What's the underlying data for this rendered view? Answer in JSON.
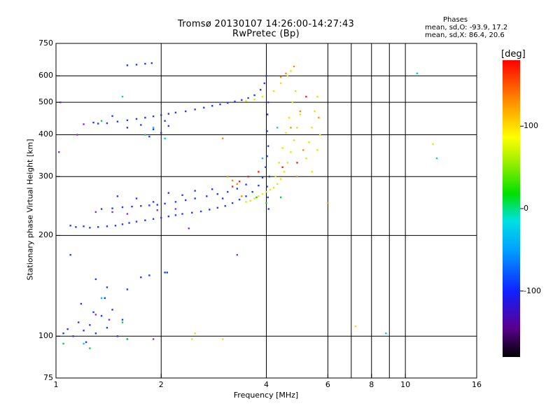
{
  "chart_data": {
    "type": "scatter",
    "title": "Tromsø 20130107 14:26:00-14:27:43",
    "subtitle": "RwPretec (Bp)",
    "stats": {
      "title": "Phases",
      "o_line": "mean, sd,O: -93.9, 17.2",
      "x_line": "mean, sd,X:  86.4, 20.6"
    },
    "xlabel": "Frequency [MHz]",
    "ylabel": "Stationary phase Virtual Height [km]",
    "x_scale": "log",
    "y_scale": "log",
    "xlim": [
      1,
      16
    ],
    "ylim": [
      75,
      750
    ],
    "x_ticks": [
      1,
      2,
      4,
      6,
      8,
      10,
      16
    ],
    "x_tick_labels": [
      "1",
      "2",
      "4",
      "6",
      "8",
      "10",
      "16"
    ],
    "x_grid": [
      2,
      4,
      6,
      8,
      10
    ],
    "x_minor": [
      7,
      9
    ],
    "y_ticks": [
      75,
      100,
      200,
      300,
      400,
      500,
      600,
      750
    ],
    "y_tick_labels": [
      "75",
      "100",
      "200",
      "300",
      "400",
      "500",
      "600",
      "750"
    ],
    "y_grid": [
      100,
      200,
      300,
      400,
      500,
      600
    ],
    "grid": true,
    "colorbar": {
      "label": "[deg]",
      "range": [
        -180,
        180
      ],
      "ticks": [
        100,
        0,
        -100
      ],
      "tick_labels": [
        "100",
        "0",
        "-100"
      ],
      "colormap": "rainbow"
    },
    "series": [
      {
        "color": "#1a3cff",
        "phase": -95,
        "points": [
          [
            1.1,
            214
          ],
          [
            1.14,
            212
          ],
          [
            1.2,
            213
          ],
          [
            1.25,
            211
          ],
          [
            1.32,
            212
          ],
          [
            1.4,
            213
          ],
          [
            1.48,
            214
          ],
          [
            1.55,
            216
          ],
          [
            1.62,
            218
          ],
          [
            1.7,
            220
          ],
          [
            1.8,
            222
          ],
          [
            1.9,
            224
          ],
          [
            2.0,
            226
          ],
          [
            2.1,
            228
          ],
          [
            2.2,
            230
          ],
          [
            2.3,
            232
          ],
          [
            2.45,
            234
          ],
          [
            2.6,
            236
          ],
          [
            2.75,
            239
          ],
          [
            2.9,
            242
          ],
          [
            3.05,
            245
          ],
          [
            3.2,
            250
          ],
          [
            3.35,
            256
          ],
          [
            3.5,
            262
          ],
          [
            3.65,
            270
          ],
          [
            3.8,
            282
          ],
          [
            3.9,
            298
          ],
          [
            3.98,
            320
          ],
          [
            4.02,
            345
          ],
          [
            4.05,
            370
          ],
          [
            1.35,
            240
          ],
          [
            1.45,
            241
          ],
          [
            1.55,
            243
          ],
          [
            1.65,
            244
          ],
          [
            1.75,
            245
          ],
          [
            1.85,
            246
          ],
          [
            1.95,
            247
          ],
          [
            2.05,
            249
          ],
          [
            2.2,
            252
          ],
          [
            2.35,
            255
          ],
          [
            2.5,
            258
          ],
          [
            2.7,
            262
          ],
          [
            2.9,
            266
          ],
          [
            3.1,
            270
          ],
          [
            3.3,
            276
          ],
          [
            3.5,
            284
          ],
          [
            1.5,
            262
          ],
          [
            1.7,
            258
          ],
          [
            1.9,
            252
          ],
          [
            2.1,
            268
          ],
          [
            2.3,
            264
          ],
          [
            2.5,
            272
          ],
          [
            2.8,
            275
          ],
          [
            3.0,
            258
          ],
          [
            1.28,
            435
          ],
          [
            1.32,
            432
          ],
          [
            1.4,
            433
          ],
          [
            1.5,
            438
          ],
          [
            1.6,
            442
          ],
          [
            1.7,
            446
          ],
          [
            1.8,
            450
          ],
          [
            1.9,
            454
          ],
          [
            2.0,
            458
          ],
          [
            2.1,
            462
          ],
          [
            2.2,
            466
          ],
          [
            2.35,
            470
          ],
          [
            2.5,
            476
          ],
          [
            2.65,
            482
          ],
          [
            2.8,
            488
          ],
          [
            2.95,
            493
          ],
          [
            3.1,
            498
          ],
          [
            3.25,
            503
          ],
          [
            3.4,
            508
          ],
          [
            3.55,
            515
          ],
          [
            3.7,
            525
          ],
          [
            3.85,
            545
          ],
          [
            3.95,
            570
          ],
          [
            4.0,
            600
          ],
          [
            1.6,
            420
          ],
          [
            1.75,
            428
          ],
          [
            1.9,
            415
          ],
          [
            2.0,
            405
          ],
          [
            2.1,
            425
          ],
          [
            1.85,
            395
          ],
          [
            2.05,
            440
          ],
          [
            1.45,
            455
          ],
          [
            1.6,
            645
          ],
          [
            1.7,
            648
          ],
          [
            1.8,
            652
          ],
          [
            1.88,
            655
          ],
          [
            1.05,
            102
          ],
          [
            1.08,
            105
          ],
          [
            1.12,
            100
          ],
          [
            1.16,
            110
          ],
          [
            1.2,
            104
          ],
          [
            1.25,
            108
          ],
          [
            1.3,
            102
          ],
          [
            1.35,
            115
          ],
          [
            1.4,
            106
          ],
          [
            1.45,
            120
          ],
          [
            1.5,
            100
          ],
          [
            1.55,
            112
          ],
          [
            1.18,
            125
          ],
          [
            1.28,
            118
          ],
          [
            1.38,
            130
          ],
          [
            1.22,
            96
          ],
          [
            1.75,
            150
          ],
          [
            1.85,
            152
          ],
          [
            2.05,
            155
          ],
          [
            2.08,
            155
          ],
          [
            1.3,
            148
          ],
          [
            1.4,
            140
          ],
          [
            1.6,
            138
          ],
          [
            1.1,
            175
          ],
          [
            4.02,
            410
          ],
          [
            4.03,
            460
          ],
          [
            4.05,
            500
          ],
          [
            4.02,
            280
          ],
          [
            4.04,
            260
          ],
          [
            4.06,
            240
          ],
          [
            4.08,
            300
          ]
        ]
      },
      {
        "color": "#8a2be2",
        "phase": -140,
        "points": [
          [
            1.45,
            235
          ],
          [
            1.6,
            232
          ],
          [
            1.95,
            238
          ],
          [
            2.2,
            240
          ],
          [
            1.3,
            116
          ],
          [
            1.42,
            112
          ],
          [
            1.6,
            98
          ],
          [
            1.9,
            98
          ],
          [
            2.4,
            210
          ],
          [
            3.3,
            175
          ],
          [
            1.2,
            430
          ],
          [
            1.15,
            400
          ],
          [
            1.02,
            355
          ],
          [
            1.03,
            500
          ],
          [
            1.3,
            235
          ]
        ]
      },
      {
        "color": "#00c8ff",
        "phase": -60,
        "points": [
          [
            1.35,
            130
          ],
          [
            1.2,
            95
          ],
          [
            1.9,
            420
          ],
          [
            2.05,
            390
          ],
          [
            3.9,
            340
          ],
          [
            1.55,
            520
          ],
          [
            10.8,
            610
          ],
          [
            12.3,
            340
          ],
          [
            8.8,
            102
          ],
          [
            4.3,
            420
          ]
        ]
      },
      {
        "color": "#e6e600",
        "phase": 100,
        "points": [
          [
            3.5,
            252
          ],
          [
            3.6,
            254
          ],
          [
            3.7,
            258
          ],
          [
            3.8,
            262
          ],
          [
            3.9,
            266
          ],
          [
            4.0,
            270
          ],
          [
            4.1,
            274
          ],
          [
            4.2,
            278
          ],
          [
            4.3,
            285
          ],
          [
            4.4,
            295
          ],
          [
            4.5,
            310
          ],
          [
            4.6,
            330
          ],
          [
            4.7,
            355
          ],
          [
            4.8,
            385
          ],
          [
            4.9,
            420
          ],
          [
            5.0,
            460
          ],
          [
            4.25,
            300
          ],
          [
            4.35,
            330
          ],
          [
            4.45,
            365
          ],
          [
            4.55,
            405
          ],
          [
            4.65,
            450
          ],
          [
            4.75,
            500
          ],
          [
            4.85,
            540
          ],
          [
            5.2,
            340
          ],
          [
            5.3,
            380
          ],
          [
            5.4,
            420
          ],
          [
            5.5,
            470
          ],
          [
            5.6,
            520
          ],
          [
            3.5,
            505
          ],
          [
            3.7,
            510
          ],
          [
            3.9,
            520
          ],
          [
            4.2,
            540
          ],
          [
            4.4,
            570
          ],
          [
            4.6,
            600
          ],
          [
            4.7,
            620
          ],
          [
            5.7,
            400
          ],
          [
            5.4,
            310
          ],
          [
            5.6,
            360
          ],
          [
            2.45,
            98
          ],
          [
            2.5,
            102
          ],
          [
            7.2,
            107
          ],
          [
            12.0,
            375
          ],
          [
            3.0,
            98
          ]
        ]
      },
      {
        "color": "#ff8c00",
        "phase": 130,
        "points": [
          [
            3.1,
            300
          ],
          [
            3.2,
            292
          ],
          [
            3.3,
            285
          ],
          [
            3.4,
            262
          ],
          [
            4.4,
            595
          ],
          [
            4.55,
            610
          ],
          [
            4.8,
            640
          ],
          [
            5.0,
            470
          ],
          [
            5.1,
            360
          ],
          [
            4.9,
            300
          ],
          [
            6.0,
            250
          ],
          [
            5.65,
            450
          ],
          [
            3.0,
            390
          ],
          [
            4.7,
            420
          ]
        ]
      },
      {
        "color": "#00d050",
        "phase": 30,
        "points": [
          [
            1.05,
            95
          ],
          [
            1.25,
            92
          ],
          [
            1.6,
            98
          ],
          [
            1.35,
            440
          ],
          [
            1.8,
            400
          ],
          [
            4.0,
            250
          ],
          [
            4.4,
            260
          ],
          [
            3.75,
            260
          ],
          [
            1.55,
            110
          ]
        ]
      },
      {
        "color": "#ff2000",
        "phase": 170,
        "points": [
          [
            3.2,
            280
          ],
          [
            3.35,
            290
          ],
          [
            3.55,
            300
          ],
          [
            3.8,
            310
          ],
          [
            4.45,
            320
          ],
          [
            4.9,
            330
          ],
          [
            5.2,
            520
          ]
        ]
      }
    ]
  }
}
